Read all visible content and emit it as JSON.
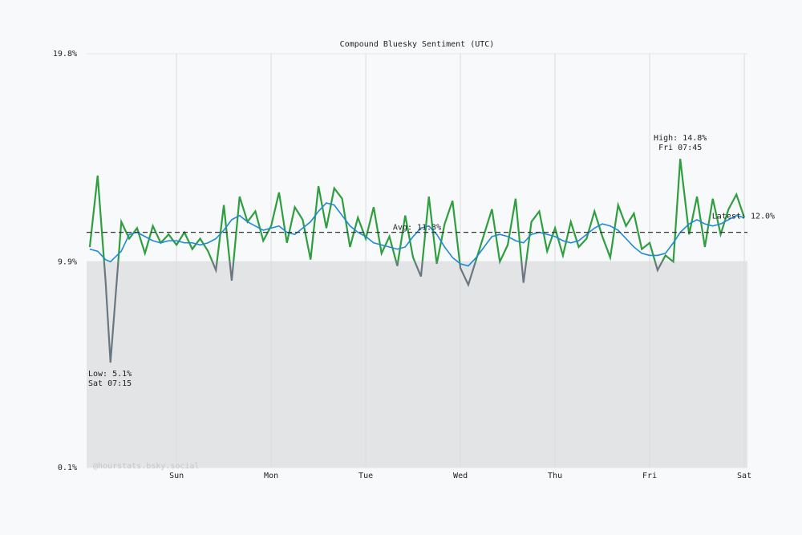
{
  "chart_data": {
    "type": "line",
    "title": "Compound Bluesky Sentiment (UTC)",
    "x": [
      -22,
      -20,
      -18,
      -16.75,
      -14,
      -12,
      -10,
      -8,
      -6,
      -4,
      -2,
      0,
      2,
      4,
      6,
      8,
      10,
      12,
      14,
      16,
      18,
      20,
      22,
      24,
      26,
      28,
      30,
      32,
      34,
      36,
      38,
      40,
      42,
      44,
      46,
      48,
      50,
      52,
      54,
      56,
      58,
      60,
      62,
      64,
      66,
      68,
      70,
      72,
      74,
      76,
      78,
      80,
      82,
      84,
      86,
      88,
      90,
      92,
      94,
      96,
      98,
      100,
      102,
      104,
      106,
      108,
      110,
      112,
      114,
      116,
      118,
      120,
      122,
      124,
      126,
      127.75,
      130,
      132,
      134,
      136,
      138,
      140,
      142,
      144
    ],
    "series": [
      {
        "color": "#2e9e3e",
        "low_color": "#6b7780",
        "values": [
          10.6,
          14.0,
          9.0,
          5.1,
          11.8,
          11.0,
          11.5,
          10.3,
          11.6,
          10.8,
          11.2,
          10.7,
          11.3,
          10.5,
          11.0,
          10.4,
          9.5,
          12.6,
          9.0,
          13.0,
          11.8,
          12.3,
          10.9,
          11.6,
          13.2,
          10.8,
          12.5,
          11.9,
          10.0,
          13.5,
          11.5,
          13.4,
          12.9,
          10.6,
          12.0,
          11.0,
          12.5,
          10.3,
          11.1,
          9.7,
          12.1,
          10.1,
          9.2,
          13.0,
          9.8,
          11.7,
          12.8,
          9.6,
          8.8,
          10.0,
          11.2,
          12.4,
          9.9,
          10.7,
          12.9,
          8.9,
          11.8,
          12.3,
          10.4,
          11.5,
          10.2,
          11.8,
          10.6,
          11.0,
          12.3,
          11.1,
          10.1,
          12.6,
          11.6,
          12.2,
          10.5,
          10.8,
          9.5,
          10.2,
          9.9,
          14.8,
          11.2,
          13.0,
          10.6,
          12.9,
          11.2,
          12.4,
          13.1,
          12.0
        ]
      },
      {
        "color": "#1f8ad1",
        "values": [
          10.5,
          10.4,
          10.0,
          9.9,
          10.4,
          11.2,
          11.3,
          11.1,
          10.9,
          10.8,
          10.9,
          10.9,
          10.8,
          10.8,
          10.7,
          10.8,
          11.0,
          11.4,
          11.9,
          12.1,
          11.8,
          11.6,
          11.4,
          11.5,
          11.6,
          11.3,
          11.2,
          11.5,
          11.8,
          12.3,
          12.7,
          12.6,
          12.1,
          11.6,
          11.3,
          11.1,
          10.8,
          10.7,
          10.6,
          10.5,
          10.6,
          11.1,
          11.5,
          11.6,
          11.2,
          10.6,
          10.1,
          9.8,
          9.7,
          10.1,
          10.6,
          11.1,
          11.2,
          11.1,
          10.9,
          10.8,
          11.2,
          11.3,
          11.2,
          11.1,
          10.9,
          10.8,
          10.9,
          11.2,
          11.5,
          11.7,
          11.6,
          11.4,
          11.0,
          10.6,
          10.3,
          10.2,
          10.2,
          10.3,
          10.8,
          11.3,
          11.7,
          11.9,
          11.7,
          11.6,
          11.7,
          11.9,
          12.1,
          12.0
        ]
      }
    ],
    "xlim": [
      -22.8,
      144.8
    ],
    "xticks": [
      {
        "value": 0,
        "label": "Sun"
      },
      {
        "value": 24,
        "label": "Mon"
      },
      {
        "value": 48,
        "label": "Tue"
      },
      {
        "value": 72,
        "label": "Wed"
      },
      {
        "value": 96,
        "label": "Thu"
      },
      {
        "value": 120,
        "label": "Fri"
      },
      {
        "value": 144,
        "label": "Sat"
      }
    ],
    "ylim": [
      0.1,
      19.8
    ],
    "yticks": [
      {
        "value": 0.1,
        "label": "0.1%"
      },
      {
        "value": 9.9,
        "label": "9.9%"
      },
      {
        "value": 19.8,
        "label": "19.8%"
      }
    ],
    "baseline": 9.9,
    "average": {
      "value": 11.3,
      "label": "Avg: 11.3%"
    },
    "high": {
      "x": 127.75,
      "y": 14.8,
      "label": "High: 14.8%",
      "time": "Fri 07:45"
    },
    "low": {
      "x": -16.75,
      "y": 5.1,
      "label": "Low: 5.1%",
      "time": "Sat 07:15"
    },
    "latest": {
      "x": 144,
      "y": 12.0,
      "label": "Latest: 12.0%"
    },
    "watermark": "@hourstats.bsky.social",
    "grid": true
  }
}
